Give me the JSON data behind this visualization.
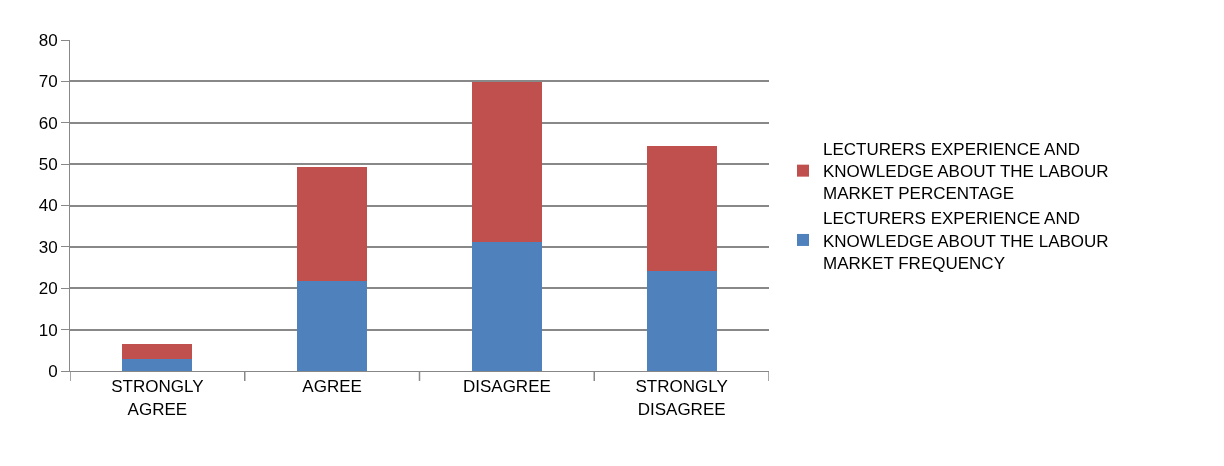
{
  "chart_data": {
    "type": "bar",
    "stacked": true,
    "categories": [
      "STRONGLY AGREE",
      "AGREE",
      "DISAGREE",
      "STRONGLY DISAGREE"
    ],
    "series": [
      {
        "name": "LECTURERS EXPERIENCE AND KNOWLEDGE ABOUT THE LABOUR MARKET FREQUENCY",
        "color": "#4f81bd",
        "values": [
          3,
          21.8,
          31.3,
          24.1
        ]
      },
      {
        "name": "LECTURERS EXPERIENCE AND KNOWLEDGE ABOUT THE LABOUR MARKET PERCENTAGE",
        "color": "#c0504d",
        "values": [
          3.6,
          27.5,
          38.6,
          30.2
        ]
      }
    ],
    "ylim": [
      0,
      80
    ],
    "yticks": [
      0,
      10,
      20,
      30,
      40,
      50,
      60,
      70,
      80
    ],
    "grid": "y",
    "legend": "right"
  }
}
